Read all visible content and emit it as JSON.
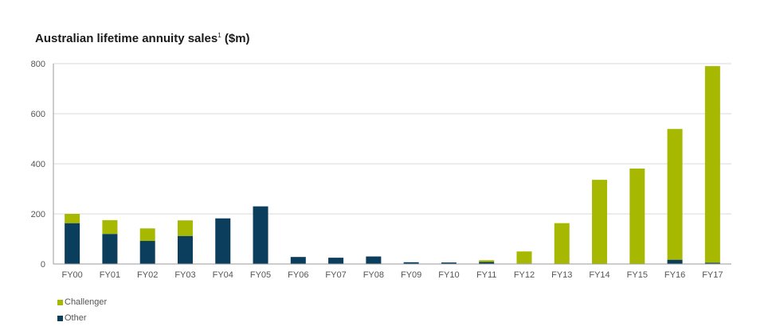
{
  "chart_data": {
    "type": "bar",
    "stacked": true,
    "title": "Australian lifetime annuity sales",
    "title_superscript": "1",
    "title_unit": "($m)",
    "xlabel": "",
    "ylabel": "",
    "ylim": [
      0,
      800
    ],
    "yticks": [
      0,
      200,
      400,
      600,
      800
    ],
    "grid": true,
    "legend_position": "bottom-left",
    "categories": [
      "FY00",
      "FY01",
      "FY02",
      "FY03",
      "FY04",
      "FY05",
      "FY06",
      "FY07",
      "FY08",
      "FY09",
      "FY10",
      "FY11",
      "FY12",
      "FY13",
      "FY14",
      "FY15",
      "FY16",
      "FY17"
    ],
    "series": [
      {
        "name": "Other",
        "color": "#0b3d5c",
        "values": [
          163,
          120,
          92,
          112,
          182,
          230,
          28,
          25,
          30,
          7,
          6,
          8,
          2,
          0,
          0,
          0,
          17,
          5
        ]
      },
      {
        "name": "Challenger",
        "color": "#a6b800",
        "values": [
          37,
          55,
          50,
          62,
          0,
          0,
          0,
          0,
          0,
          0,
          0,
          7,
          48,
          163,
          336,
          381,
          522,
          785
        ]
      }
    ]
  }
}
